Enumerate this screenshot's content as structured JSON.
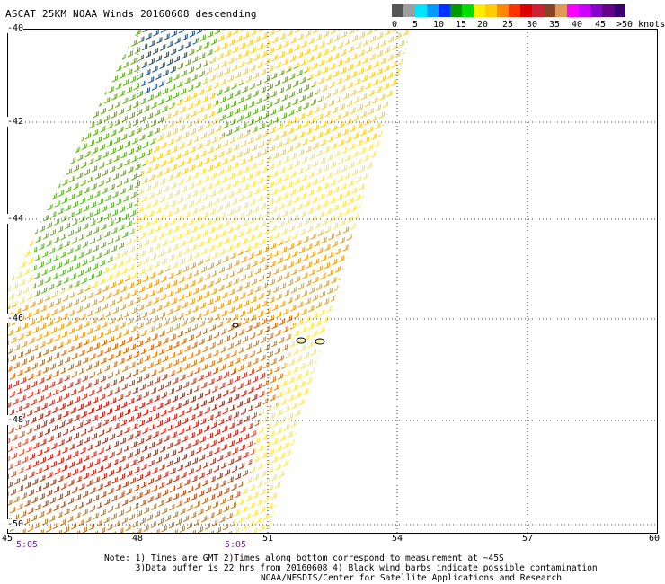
{
  "title": "ASCAT 25KM NOAA Winds 20160608 descending",
  "legend": {
    "colors": [
      "#555555",
      "#9e9e9e",
      "#00e5ff",
      "#0099ff",
      "#0033ff",
      "#009900",
      "#00dd00",
      "#ffee00",
      "#ffcc00",
      "#ff8800",
      "#ff3300",
      "#dd0000",
      "#cc2233",
      "#884422",
      "#dd9955",
      "#ff00ff",
      "#cc00ff",
      "#8800cc",
      "#660088",
      "#3a0070"
    ],
    "labels": [
      "0",
      "5",
      "10",
      "15",
      "20",
      "25",
      "30",
      "35",
      "40",
      "45",
      ">50 knots"
    ]
  },
  "axes": {
    "lat_labels": [
      "-40",
      "-42",
      "-44",
      "-46",
      "-48",
      "-50"
    ],
    "lon_labels": [
      "45",
      "48",
      "51",
      "54",
      "57",
      "60"
    ]
  },
  "times": [
    "5:05",
    "5:05"
  ],
  "note": "Note: 1) Times are GMT 2)Times along bottom correspond to measurement at ~45S\n      3)Data buffer is 22 hrs from 20160608 4) Black wind barbs indicate possible contamination",
  "credit": "NOAA/NESDIS/Center for Satellite Applications and Research",
  "swath_colors": {
    "green": "#22aa22",
    "darkgreen": "#118811",
    "blue": "#1133cc",
    "yellow": "#ffdd00",
    "gold": "#ffbb00",
    "orange": "#ee8800",
    "darkorange": "#dd5500",
    "red": "#dd1111",
    "crimson": "#cc2244",
    "brown": "#aa5522"
  }
}
